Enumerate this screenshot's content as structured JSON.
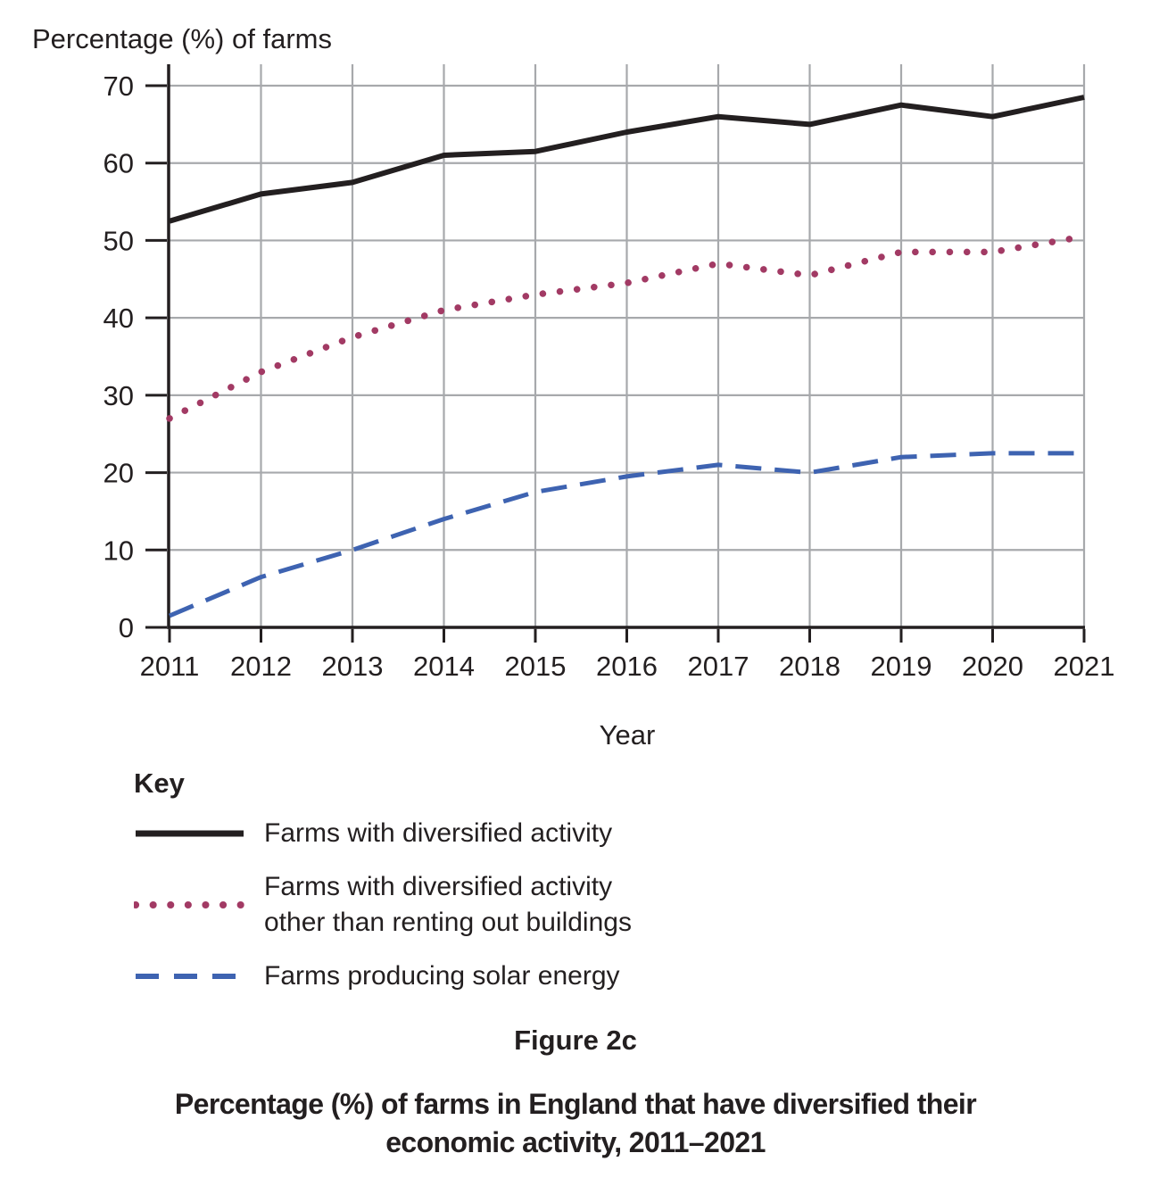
{
  "chart_data": {
    "type": "line",
    "title": "",
    "ylabel": "Percentage (%) of farms",
    "xlabel": "Year",
    "x": [
      2011,
      2012,
      2013,
      2014,
      2015,
      2016,
      2017,
      2018,
      2019,
      2020,
      2021
    ],
    "ylim": [
      0,
      70
    ],
    "y_ticks": [
      0,
      10,
      20,
      30,
      40,
      50,
      60,
      70
    ],
    "grid": true,
    "legend_position": "below-left",
    "series": [
      {
        "name": "Farms with diversified activity",
        "line_style": "solid",
        "color": "#231f20",
        "values": [
          52.5,
          56,
          57.5,
          61,
          61.5,
          64,
          66,
          65,
          67.5,
          66,
          68.5
        ]
      },
      {
        "name": "Farms with diversified activity other than renting out buildings",
        "line_style": "dotted",
        "color": "#a23a64",
        "values": [
          27,
          33,
          37.5,
          41,
          43,
          44.5,
          47,
          45.5,
          48.5,
          48.5,
          50.5
        ]
      },
      {
        "name": "Farms producing solar energy",
        "line_style": "dashed",
        "color": "#3e63b1",
        "values": [
          1.5,
          6.5,
          10,
          14,
          17.5,
          19.5,
          21,
          20,
          22,
          22.5,
          22.5
        ]
      }
    ]
  },
  "legend": {
    "title": "Key",
    "items": [
      {
        "series": 0,
        "label_lines": [
          "Farms with diversified activity"
        ]
      },
      {
        "series": 1,
        "label_lines": [
          "Farms with diversified activity",
          "other than renting out buildings"
        ]
      },
      {
        "series": 2,
        "label_lines": [
          "Farms producing solar energy"
        ]
      }
    ]
  },
  "caption": {
    "figure_label": "Figure 2c",
    "line1": "Percentage (%) of farms in England that have diversified their",
    "line2": "economic activity, 2011–2021"
  },
  "colors": {
    "axis": "#231f20",
    "gridline": "#a7a9ac",
    "text": "#231f20",
    "background": "#ffffff"
  }
}
